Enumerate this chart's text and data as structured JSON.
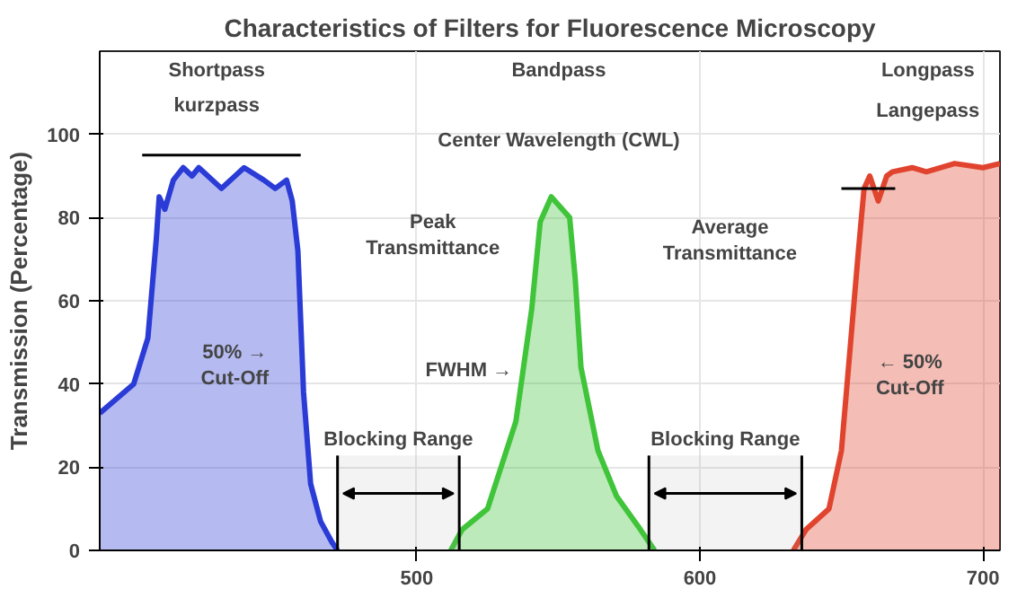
{
  "chart_data": {
    "type": "area",
    "title": "Characteristics of Filters for Fluorescence Microscopy",
    "ylabel": "Transmission (Percentage)",
    "xlim": [
      388,
      706
    ],
    "ylim": [
      0,
      120
    ],
    "xticks": [
      500,
      600,
      700
    ],
    "yticks": [
      0,
      20,
      40,
      60,
      80,
      100
    ],
    "grid": true,
    "series": [
      {
        "color": "#2a3bd6",
        "x": [
          388,
          400,
          405,
          408,
          409,
          411,
          414,
          417.5,
          420.6,
          423,
          431,
          439,
          446,
          450,
          454,
          456,
          458,
          460,
          462.5,
          466,
          470,
          472
        ],
        "values": [
          33,
          40,
          51,
          75,
          85,
          82,
          89,
          92,
          90,
          92,
          87,
          92,
          89,
          87,
          89,
          84,
          72,
          38,
          16,
          7,
          2,
          0
        ]
      },
      {
        "color": "#3fc43a",
        "x": [
          512,
          516,
          525,
          535,
          540.6,
          543.6,
          547.5,
          554,
          556,
          558,
          564,
          570.6,
          579,
          584
        ],
        "values": [
          0,
          5,
          10,
          31,
          58,
          79,
          85,
          80,
          65,
          44,
          24,
          13,
          5,
          0
        ]
      },
      {
        "color": "#e0442e",
        "x": [
          633,
          637.5,
          645.6,
          650,
          653,
          656,
          658,
          660,
          663,
          666,
          668,
          675,
          680,
          690,
          700,
          706
        ],
        "values": [
          0,
          5,
          10,
          24,
          48,
          72,
          87,
          90,
          84,
          90,
          91,
          92,
          91,
          93,
          92,
          93
        ]
      },
      {
        "type": "line",
        "color": "#000000",
        "x": [
          403,
          459
        ],
        "values": [
          95,
          95
        ]
      },
      {
        "type": "line",
        "color": "#000000",
        "x": [
          650,
          669
        ],
        "values": [
          87,
          87
        ]
      }
    ],
    "bands": [
      {
        "axis": "x",
        "from": 472,
        "to": 515,
        "label": "Blocking Range"
      },
      {
        "axis": "x",
        "from": 582,
        "to": 636,
        "label": "Blocking Range"
      }
    ],
    "annotations": [
      "Shortpass",
      "kurzpass",
      "Bandpass",
      "Longpass",
      "Langepass",
      "Center Wavelength (CWL)",
      "Peak\nTransmittance",
      "Average\nTransmittance",
      "50% →\nCut-Off",
      "FWHM →",
      "← 50%\nCut-Off"
    ]
  }
}
